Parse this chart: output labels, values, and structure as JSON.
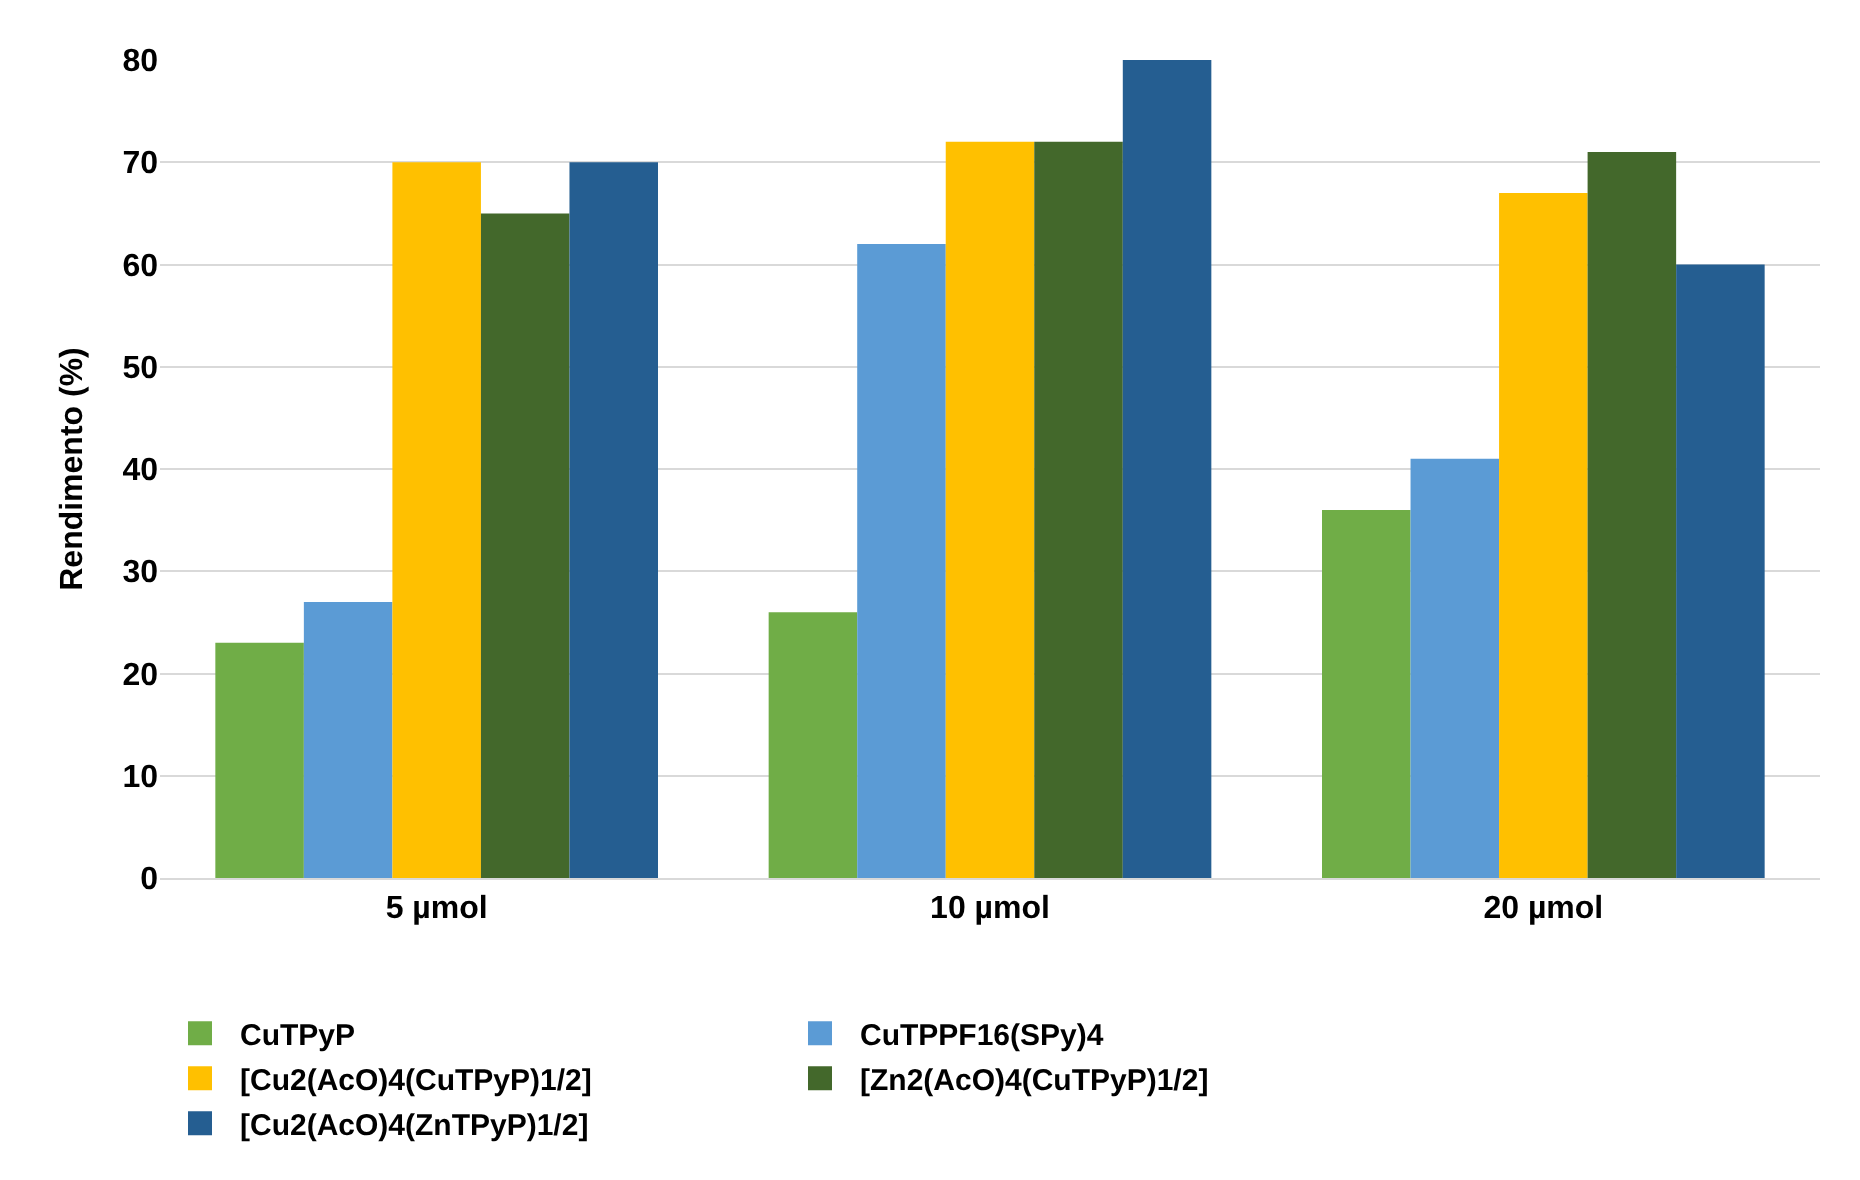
{
  "chart_data": {
    "type": "bar",
    "ylabel": "Rendimento (%)",
    "categories": [
      "5 µmol",
      "10 µmol",
      "20 µmol"
    ],
    "series": [
      {
        "name": "CuTPyP",
        "color": "#70ad47",
        "values": [
          23,
          26,
          36
        ]
      },
      {
        "name": "CuTPPF16(SPy)4",
        "color": "#5b9bd5",
        "values": [
          27,
          62,
          41
        ]
      },
      {
        "name": "[Cu2(AcO)4(CuTPyP)1/2]",
        "color": "#ffc000",
        "values": [
          70,
          72,
          67
        ]
      },
      {
        "name": "[Zn2(AcO)4(CuTPyP)1/2]",
        "color": "#43682b",
        "values": [
          65,
          72,
          71
        ]
      },
      {
        "name": "[Cu2(AcO)4(ZnTPyP)1/2]",
        "color": "#255e91",
        "values": [
          70,
          80,
          60
        ]
      }
    ],
    "ylim": [
      0,
      80
    ],
    "yticks": [
      0,
      10,
      20,
      30,
      40,
      50,
      60,
      70,
      80
    ],
    "grid": "y",
    "legend": "bottom"
  }
}
